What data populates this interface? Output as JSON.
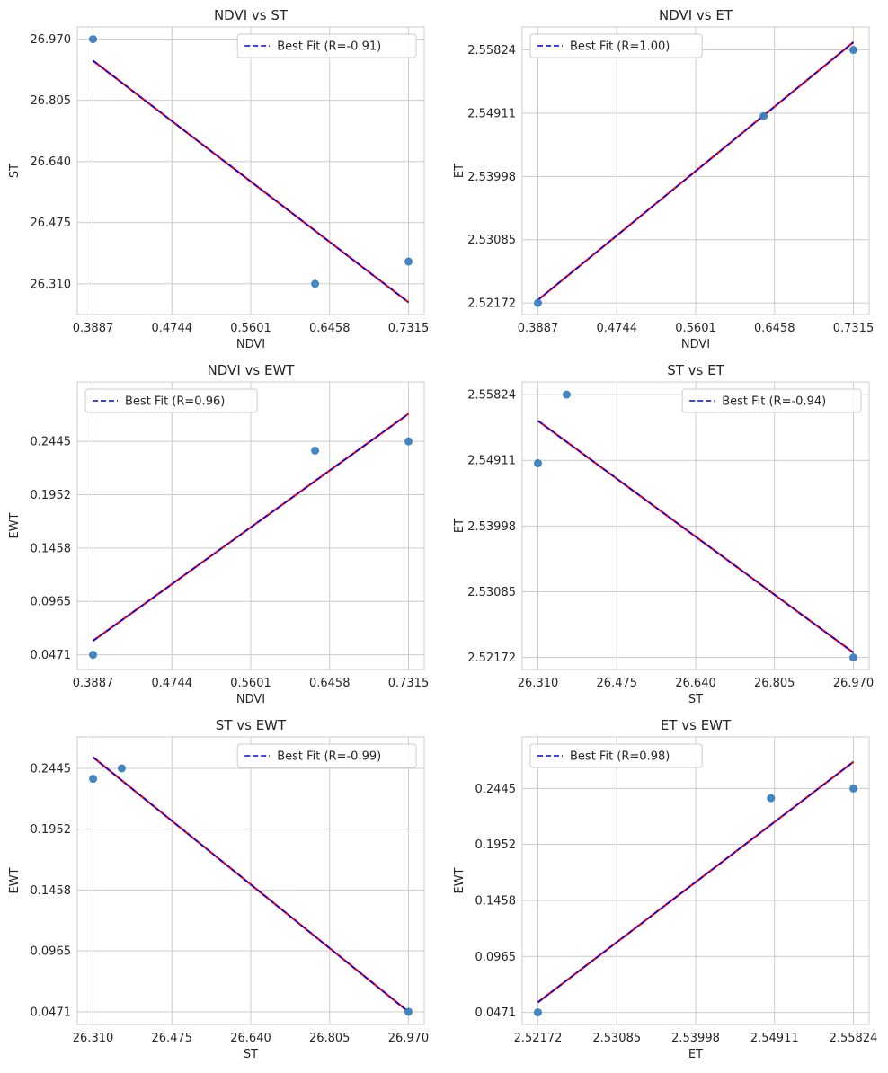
{
  "chart_data": [
    {
      "type": "scatter",
      "title": "NDVI vs ST",
      "xlabel": "NDVI",
      "ylabel": "ST",
      "xticks": [
        "0.3887",
        "0.4744",
        "0.5601",
        "0.6458",
        "0.7315"
      ],
      "yticks": [
        "26.310",
        "26.475",
        "26.640",
        "26.805",
        "26.970"
      ],
      "xlim": [
        0.3716,
        0.7486
      ],
      "ylim": [
        26.227,
        27.003
      ],
      "points": [
        [
          0.3887,
          26.97
        ],
        [
          0.63,
          26.31
        ],
        [
          0.7315,
          26.37
        ]
      ],
      "fit": [
        [
          0.3887,
          26.912
        ],
        [
          0.7315,
          26.26
        ]
      ],
      "legend": "Best Fit (R=-0.91)",
      "legend_loc": "top-right",
      "grid": true
    },
    {
      "type": "scatter",
      "title": "NDVI vs ET",
      "xlabel": "NDVI",
      "ylabel": "ET",
      "xticks": [
        "0.3887",
        "0.4744",
        "0.5601",
        "0.6458",
        "0.7315"
      ],
      "yticks": [
        "2.52172",
        "2.53085",
        "2.53998",
        "2.54911",
        "2.55824"
      ],
      "xlim": [
        0.3716,
        0.7486
      ],
      "ylim": [
        2.52005,
        2.56155
      ],
      "points": [
        [
          0.3887,
          2.52172
        ],
        [
          0.634,
          2.5487
        ],
        [
          0.7315,
          2.55824
        ]
      ],
      "fit": [
        [
          0.3887,
          2.52215
        ],
        [
          0.7315,
          2.55935
        ]
      ],
      "legend": "Best Fit (R=1.00)",
      "legend_loc": "top-left",
      "grid": true
    },
    {
      "type": "scatter",
      "title": "NDVI vs EWT",
      "xlabel": "NDVI",
      "ylabel": "EWT",
      "xticks": [
        "0.3887",
        "0.4744",
        "0.5601",
        "0.6458",
        "0.7315"
      ],
      "yticks": [
        "0.0471",
        "0.0965",
        "0.1458",
        "0.1952",
        "0.2445"
      ],
      "xlim": [
        0.3716,
        0.7486
      ],
      "ylim": [
        0.0335,
        0.2995
      ],
      "points": [
        [
          0.3887,
          0.0471
        ],
        [
          0.63,
          0.236
        ],
        [
          0.7315,
          0.2445
        ]
      ],
      "fit": [
        [
          0.3887,
          0.06
        ],
        [
          0.7315,
          0.27
        ]
      ],
      "legend": "Best Fit (R=0.96)",
      "legend_loc": "top-left",
      "grid": true
    },
    {
      "type": "scatter",
      "title": "ST vs ET",
      "xlabel": "ST",
      "ylabel": "ET",
      "xticks": [
        "26.310",
        "26.475",
        "26.640",
        "26.805",
        "26.970"
      ],
      "yticks": [
        "2.52172",
        "2.53085",
        "2.53998",
        "2.54911",
        "2.55824"
      ],
      "xlim": [
        26.277,
        27.003
      ],
      "ylim": [
        2.52005,
        2.56
      ],
      "points": [
        [
          26.31,
          2.5487
        ],
        [
          26.37,
          2.55824
        ],
        [
          26.97,
          2.52172
        ]
      ],
      "fit": [
        [
          26.31,
          2.5546
        ],
        [
          26.97,
          2.5224
        ]
      ],
      "legend": "Best Fit (R=-0.94)",
      "legend_loc": "top-right",
      "grid": true
    },
    {
      "type": "scatter",
      "title": "ST vs EWT",
      "xlabel": "ST",
      "ylabel": "EWT",
      "xticks": [
        "26.310",
        "26.475",
        "26.640",
        "26.805",
        "26.970"
      ],
      "yticks": [
        "0.0471",
        "0.0965",
        "0.1458",
        "0.1952",
        "0.2445"
      ],
      "xlim": [
        26.277,
        27.003
      ],
      "ylim": [
        0.0368,
        0.27
      ],
      "points": [
        [
          26.31,
          0.236
        ],
        [
          26.37,
          0.2445
        ],
        [
          26.97,
          0.0471
        ]
      ],
      "fit": [
        [
          26.31,
          0.2535
        ],
        [
          26.97,
          0.0471
        ]
      ],
      "legend": "Best Fit (R=-0.99)",
      "legend_loc": "top-right",
      "grid": true
    },
    {
      "type": "scatter",
      "title": "ET vs EWT",
      "xlabel": "ET",
      "ylabel": "EWT",
      "xticks": [
        "2.52172",
        "2.53085",
        "2.53998",
        "2.54911",
        "2.55824"
      ],
      "yticks": [
        "0.0471",
        "0.0965",
        "0.1458",
        "0.1952",
        "0.2445"
      ],
      "xlim": [
        2.5199,
        2.56006
      ],
      "ylim": [
        0.0365,
        0.29
      ],
      "points": [
        [
          2.52172,
          0.0471
        ],
        [
          2.5487,
          0.236
        ],
        [
          2.55824,
          0.2445
        ]
      ],
      "fit": [
        [
          2.52172,
          0.056
        ],
        [
          2.55824,
          0.268
        ]
      ],
      "legend": "Best Fit (R=0.98)",
      "legend_loc": "top-left",
      "grid": true
    }
  ],
  "colors": {
    "point": "#3a7fbf",
    "fit_under": "#ff0000",
    "fit_dash": "#0000ff",
    "grid": "#cccccc",
    "axes_bg": "#ffffff",
    "spine": "#cccccc"
  }
}
